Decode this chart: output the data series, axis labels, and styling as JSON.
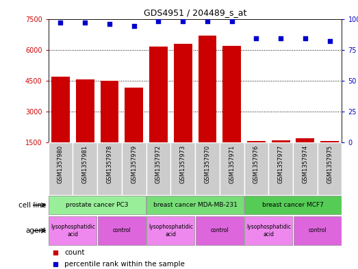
{
  "title": "GDS4951 / 204489_s_at",
  "samples": [
    "GSM1357980",
    "GSM1357981",
    "GSM1357978",
    "GSM1357979",
    "GSM1357972",
    "GSM1357973",
    "GSM1357970",
    "GSM1357971",
    "GSM1357976",
    "GSM1357977",
    "GSM1357974",
    "GSM1357975"
  ],
  "counts": [
    4700,
    4550,
    4500,
    4150,
    6150,
    6300,
    6700,
    6200,
    1580,
    1600,
    1700,
    1570
  ],
  "percentiles": [
    97,
    97,
    96,
    94,
    98,
    98,
    98,
    98,
    84,
    84,
    84,
    82
  ],
  "bar_color": "#cc0000",
  "dot_color": "#0000cc",
  "ylim_left": [
    1500,
    7500
  ],
  "ylim_right": [
    0,
    100
  ],
  "yticks_left": [
    1500,
    3000,
    4500,
    6000,
    7500
  ],
  "yticks_right": [
    0,
    25,
    50,
    75,
    100
  ],
  "cell_line_groups": [
    {
      "label": "prostate cancer PC3",
      "start": 0,
      "end": 3,
      "color": "#99ee99"
    },
    {
      "label": "breast cancer MDA-MB-231",
      "start": 4,
      "end": 7,
      "color": "#77dd77"
    },
    {
      "label": "breast cancer MCF7",
      "start": 8,
      "end": 11,
      "color": "#55cc55"
    }
  ],
  "agent_groups": [
    {
      "label": "lysophosphatidic\nacid",
      "start": 0,
      "end": 1,
      "color": "#ee88ee"
    },
    {
      "label": "control",
      "start": 2,
      "end": 3,
      "color": "#dd66dd"
    },
    {
      "label": "lysophosphatidic\nacid",
      "start": 4,
      "end": 5,
      "color": "#ee88ee"
    },
    {
      "label": "control",
      "start": 6,
      "end": 7,
      "color": "#dd66dd"
    },
    {
      "label": "lysophosphatidic\nacid",
      "start": 8,
      "end": 9,
      "color": "#ee88ee"
    },
    {
      "label": "control",
      "start": 10,
      "end": 11,
      "color": "#dd66dd"
    }
  ],
  "cell_line_label": "cell line",
  "agent_label": "agent",
  "legend_count_label": "count",
  "legend_pct_label": "percentile rank within the sample",
  "tick_bg_color": "#cccccc"
}
